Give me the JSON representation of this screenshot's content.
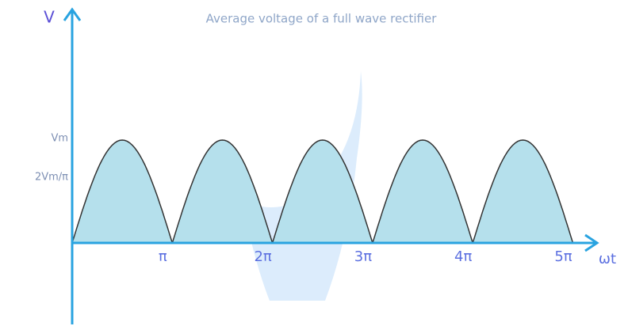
{
  "title": "Average voltage of a full wave rectifier",
  "y_axis_label": "V",
  "x_axis_label": "ωt",
  "y_labels": [
    "Vm",
    "2Vm/π"
  ],
  "x_labels": [
    "π",
    "2π",
    "3π",
    "4π",
    "5π"
  ]
}
